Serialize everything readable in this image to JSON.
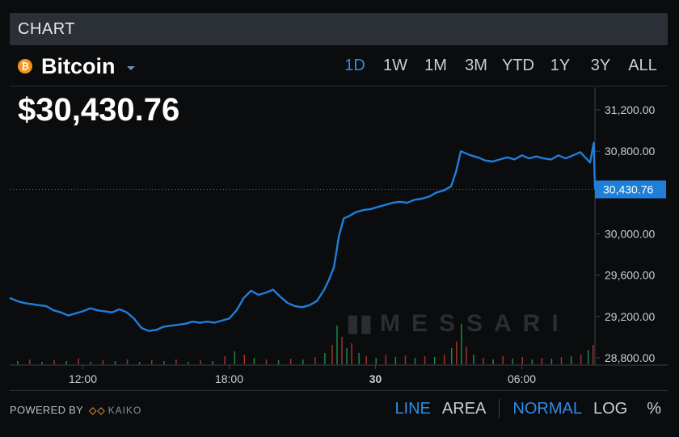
{
  "header": {
    "title": "CHART"
  },
  "asset": {
    "icon_glyph": "₿",
    "icon_color": "#f7931a",
    "name": "Bitcoin"
  },
  "ranges": [
    {
      "label": "1D",
      "active": true
    },
    {
      "label": "1W",
      "active": false
    },
    {
      "label": "1M",
      "active": false
    },
    {
      "label": "3M",
      "active": false
    },
    {
      "label": "YTD",
      "active": false
    },
    {
      "label": "1Y",
      "active": false
    },
    {
      "label": "3Y",
      "active": false
    },
    {
      "label": "ALL",
      "active": false
    }
  ],
  "price": {
    "display": "$30,430.76"
  },
  "footer": {
    "powered_by": "POWERED BY",
    "provider": "KAIKO",
    "chart_types": [
      {
        "label": "LINE",
        "active": true
      },
      {
        "label": "AREA",
        "active": false
      }
    ],
    "scales": [
      {
        "label": "NORMAL",
        "active": true
      },
      {
        "label": "LOG",
        "active": false
      },
      {
        "label": "%",
        "active": false
      }
    ]
  },
  "colors": {
    "accent": "#2d8ce6",
    "line": "#1f7fd8",
    "volume_up": "#1f9d55",
    "volume_down": "#c0392b"
  },
  "chart_data": {
    "type": "line",
    "x_ticks": [
      "12:00",
      "18:00",
      "30",
      "06:00"
    ],
    "y_ticks": [
      "31,200.00",
      "30,800.00",
      "30,000.00",
      "29,600.00",
      "29,200.00",
      "28,800.00"
    ],
    "last_label": "30,430.76",
    "watermark": "MESSARI",
    "ylim": [
      28800,
      31200
    ],
    "x_hours": [
      9,
      33
    ],
    "series": [
      {
        "points": [
          [
            9.0,
            29380
          ],
          [
            9.3,
            29350
          ],
          [
            9.6,
            29330
          ],
          [
            9.9,
            29320
          ],
          [
            10.2,
            29310
          ],
          [
            10.5,
            29300
          ],
          [
            10.8,
            29260
          ],
          [
            11.1,
            29240
          ],
          [
            11.4,
            29210
          ],
          [
            11.7,
            29230
          ],
          [
            12.0,
            29250
          ],
          [
            12.3,
            29280
          ],
          [
            12.6,
            29260
          ],
          [
            12.9,
            29250
          ],
          [
            13.2,
            29240
          ],
          [
            13.5,
            29270
          ],
          [
            13.8,
            29240
          ],
          [
            14.1,
            29180
          ],
          [
            14.4,
            29090
          ],
          [
            14.7,
            29060
          ],
          [
            15.0,
            29070
          ],
          [
            15.3,
            29100
          ],
          [
            15.6,
            29110
          ],
          [
            15.9,
            29120
          ],
          [
            16.2,
            29130
          ],
          [
            16.5,
            29150
          ],
          [
            16.8,
            29140
          ],
          [
            17.1,
            29150
          ],
          [
            17.4,
            29140
          ],
          [
            17.7,
            29160
          ],
          [
            18.0,
            29180
          ],
          [
            18.3,
            29260
          ],
          [
            18.6,
            29380
          ],
          [
            18.9,
            29450
          ],
          [
            19.2,
            29410
          ],
          [
            19.5,
            29430
          ],
          [
            19.8,
            29460
          ],
          [
            20.1,
            29390
          ],
          [
            20.4,
            29330
          ],
          [
            20.7,
            29300
          ],
          [
            21.0,
            29290
          ],
          [
            21.3,
            29310
          ],
          [
            21.6,
            29350
          ],
          [
            21.9,
            29460
          ],
          [
            22.1,
            29560
          ],
          [
            22.3,
            29680
          ],
          [
            22.5,
            29980
          ],
          [
            22.7,
            30150
          ],
          [
            22.9,
            30170
          ],
          [
            23.2,
            30210
          ],
          [
            23.5,
            30230
          ],
          [
            23.8,
            30240
          ],
          [
            24.1,
            30260
          ],
          [
            24.4,
            30280
          ],
          [
            24.7,
            30300
          ],
          [
            25.0,
            30310
          ],
          [
            25.3,
            30300
          ],
          [
            25.6,
            30330
          ],
          [
            25.9,
            30340
          ],
          [
            26.2,
            30360
          ],
          [
            26.5,
            30400
          ],
          [
            26.8,
            30420
          ],
          [
            27.1,
            30460
          ],
          [
            27.3,
            30600
          ],
          [
            27.5,
            30800
          ],
          [
            27.7,
            30780
          ],
          [
            27.9,
            30760
          ],
          [
            28.2,
            30740
          ],
          [
            28.5,
            30710
          ],
          [
            28.8,
            30700
          ],
          [
            29.1,
            30720
          ],
          [
            29.4,
            30740
          ],
          [
            29.7,
            30720
          ],
          [
            30.0,
            30760
          ],
          [
            30.3,
            30730
          ],
          [
            30.6,
            30750
          ],
          [
            30.9,
            30730
          ],
          [
            31.2,
            30720
          ],
          [
            31.5,
            30760
          ],
          [
            31.8,
            30730
          ],
          [
            32.1,
            30760
          ],
          [
            32.4,
            30790
          ],
          [
            32.6,
            30740
          ],
          [
            32.8,
            30690
          ],
          [
            32.95,
            30880
          ],
          [
            33.0,
            30430
          ]
        ]
      }
    ],
    "volume": [
      [
        9.3,
        4,
        0
      ],
      [
        9.8,
        6,
        1
      ],
      [
        10.3,
        3,
        0
      ],
      [
        10.8,
        5,
        1
      ],
      [
        11.3,
        4,
        0
      ],
      [
        11.8,
        7,
        1
      ],
      [
        12.3,
        3,
        0
      ],
      [
        12.8,
        5,
        1
      ],
      [
        13.3,
        4,
        0
      ],
      [
        13.8,
        6,
        1
      ],
      [
        14.3,
        3,
        0
      ],
      [
        14.8,
        5,
        1
      ],
      [
        15.3,
        4,
        0
      ],
      [
        15.8,
        6,
        1
      ],
      [
        16.3,
        3,
        0
      ],
      [
        16.8,
        5,
        1
      ],
      [
        17.3,
        4,
        0
      ],
      [
        17.8,
        10,
        1
      ],
      [
        18.2,
        16,
        0
      ],
      [
        18.6,
        12,
        1
      ],
      [
        19.0,
        8,
        0
      ],
      [
        19.5,
        6,
        1
      ],
      [
        20.0,
        5,
        0
      ],
      [
        20.5,
        7,
        1
      ],
      [
        21.0,
        6,
        0
      ],
      [
        21.5,
        9,
        1
      ],
      [
        21.9,
        14,
        0
      ],
      [
        22.2,
        24,
        1
      ],
      [
        22.4,
        48,
        0
      ],
      [
        22.6,
        34,
        1
      ],
      [
        22.8,
        20,
        0
      ],
      [
        23.0,
        26,
        1
      ],
      [
        23.3,
        14,
        0
      ],
      [
        23.6,
        10,
        1
      ],
      [
        24.0,
        8,
        0
      ],
      [
        24.4,
        12,
        1
      ],
      [
        24.8,
        9,
        0
      ],
      [
        25.2,
        11,
        1
      ],
      [
        25.6,
        8,
        0
      ],
      [
        26.0,
        10,
        1
      ],
      [
        26.4,
        9,
        0
      ],
      [
        26.8,
        12,
        1
      ],
      [
        27.1,
        20,
        0
      ],
      [
        27.3,
        28,
        1
      ],
      [
        27.5,
        50,
        0
      ],
      [
        27.7,
        22,
        1
      ],
      [
        28.0,
        12,
        0
      ],
      [
        28.4,
        8,
        1
      ],
      [
        28.8,
        6,
        0
      ],
      [
        29.2,
        10,
        1
      ],
      [
        29.6,
        7,
        0
      ],
      [
        30.0,
        9,
        1
      ],
      [
        30.4,
        6,
        0
      ],
      [
        30.8,
        8,
        1
      ],
      [
        31.2,
        7,
        0
      ],
      [
        31.6,
        9,
        1
      ],
      [
        32.0,
        10,
        0
      ],
      [
        32.4,
        12,
        1
      ],
      [
        32.7,
        18,
        0
      ],
      [
        32.9,
        24,
        1
      ]
    ]
  }
}
